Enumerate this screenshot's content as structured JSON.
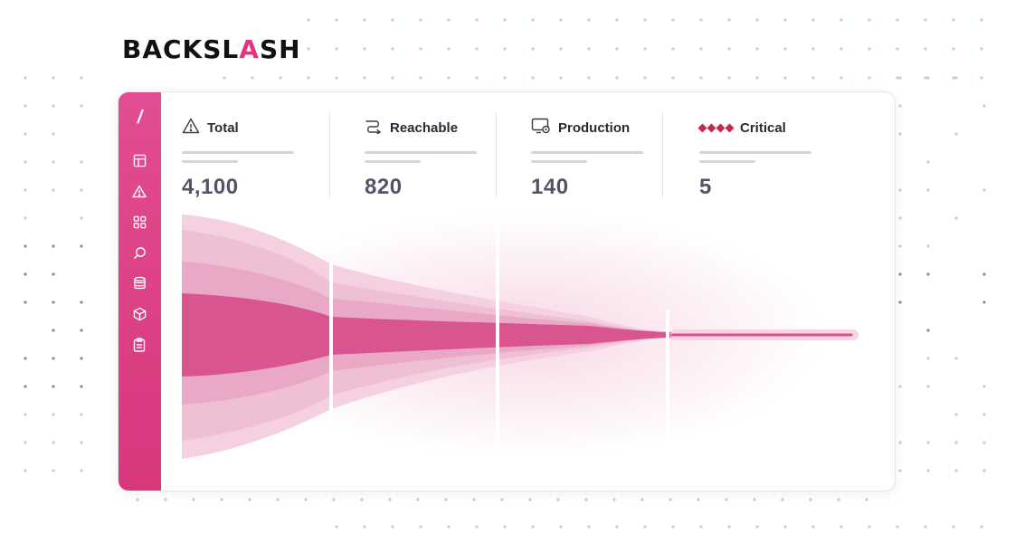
{
  "brand": {
    "logo_before": "BACKSL",
    "logo_slash": "A",
    "logo_after": "SH",
    "sidebar_mark": "/"
  },
  "sidebar": {
    "icons": [
      "layout-icon",
      "warning-icon",
      "grid-icon",
      "search-icon",
      "database-icon",
      "package-icon",
      "clipboard-icon"
    ]
  },
  "metrics": [
    {
      "label": "Total",
      "value": "4,100",
      "icon": "warning-icon"
    },
    {
      "label": "Reachable",
      "value": "820",
      "icon": "route-icon"
    },
    {
      "label": "Production",
      "value": "140",
      "icon": "monitor-icon"
    },
    {
      "label": "Critical",
      "value": "5",
      "icon": "diamonds-icon"
    }
  ],
  "colors": {
    "accent": "#e0357f",
    "sidebar": "#dc3f83",
    "funnel_core": "#d94f8a",
    "critical": "#c8264c"
  }
}
